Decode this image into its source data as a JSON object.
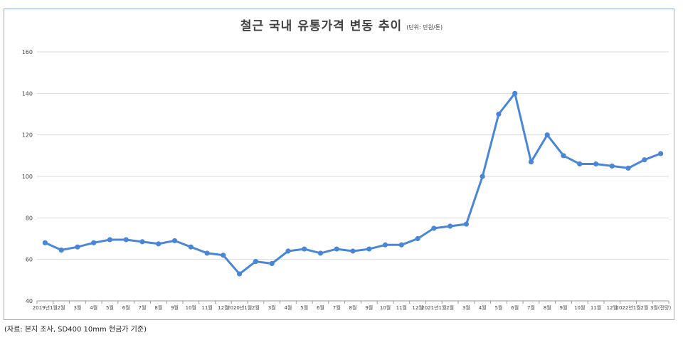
{
  "chart_data": {
    "type": "line",
    "title": "철근 국내 유통가격 변동 추이",
    "unit_note": "(단위: 만원/톤)",
    "categories": [
      "2019년1월",
      "2월",
      "3월",
      "4월",
      "5월",
      "6월",
      "7월",
      "8월",
      "9월",
      "10월",
      "11월",
      "12월",
      "2020년1월",
      "2월",
      "3월",
      "4월",
      "5월",
      "6월",
      "7월",
      "8월",
      "9월",
      "10월",
      "11월",
      "12월",
      "2021년1월",
      "2월",
      "3월",
      "4월",
      "5월",
      "6월",
      "7월",
      "8월",
      "9월",
      "10월",
      "11월",
      "12월",
      "2022년1월",
      "2월",
      "3월(전망)"
    ],
    "series": [
      {
        "values": [
          68,
          64.5,
          66,
          68,
          69.5,
          69.5,
          68.5,
          67.5,
          69,
          66,
          63,
          62,
          53,
          59,
          58,
          64,
          65,
          63,
          65,
          64,
          65,
          67,
          67,
          70,
          75,
          76,
          77,
          100,
          130,
          140,
          107,
          120,
          110,
          106,
          106,
          105,
          104,
          108,
          111
        ]
      }
    ],
    "ylim": [
      40,
      160
    ],
    "yticks": [
      40,
      60,
      80,
      100,
      120,
      140,
      160
    ],
    "grid": true,
    "line_color": "#4a86d8",
    "grid_color": "#d9d9d9"
  },
  "source_note": "(자료: 본지 조사, SD400 10mm 현금가 기준)"
}
